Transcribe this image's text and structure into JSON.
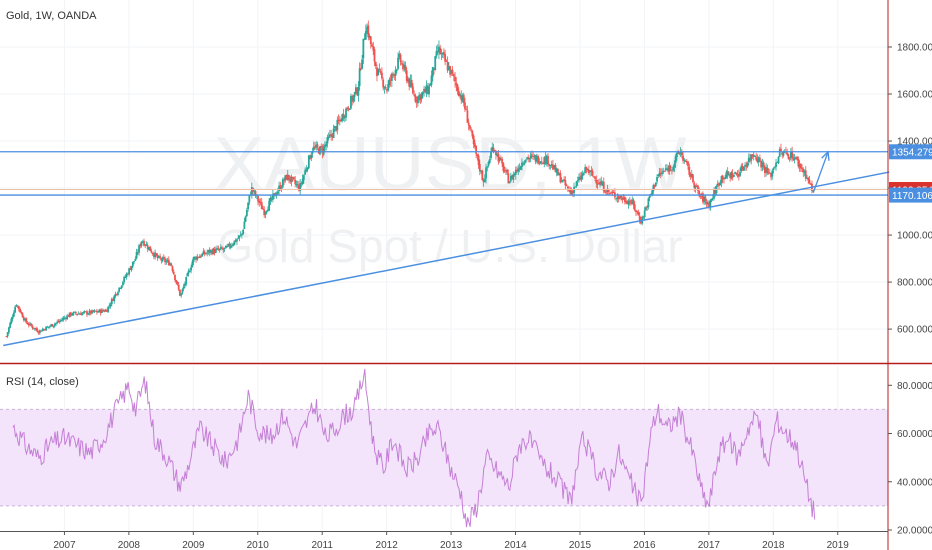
{
  "chart_title": "Gold, 1W, OANDA",
  "watermark_symbol": "XAUUSD, 1W",
  "watermark_name": "Gold Spot / U.S. Dollar",
  "rsi_label": "RSI (14, close)",
  "price_badges": [
    {
      "value": 1354.279,
      "label": "1354.279",
      "color": "#4a8fe0"
    },
    {
      "value": 1193.854,
      "label": "1193.854",
      "color": "#d9322e"
    },
    {
      "value": 1170.106,
      "label": "1170.106",
      "color": "#4a8fe0"
    }
  ],
  "colors": {
    "up": "#26a69a",
    "down": "#ef5350",
    "lines": "#4a8fe0",
    "rsi": "#c57fd6",
    "rsi_band": "#f3e3fb",
    "separator": "#b71c1c"
  },
  "chart_data": [
    {
      "type": "candlestick",
      "title": "Gold, 1W, OANDA",
      "ylabel": "",
      "xlabel": "",
      "ylim": [
        460,
        2000
      ],
      "y_ticks": [
        "600.000",
        "800.000",
        "1000.000",
        "1200.000",
        "1400.000",
        "1600.000",
        "1800.000"
      ],
      "y_tick_values": [
        600,
        800,
        1000,
        1200,
        1400,
        1600,
        1800
      ],
      "x_ticks": [
        "2007",
        "2008",
        "2009",
        "2010",
        "2011",
        "2012",
        "2013",
        "2014",
        "2015",
        "2016",
        "2017",
        "2018",
        "2019"
      ],
      "x_tick_values": [
        2007,
        2008,
        2009,
        2010,
        2011,
        2012,
        2013,
        2014,
        2015,
        2016,
        2017,
        2018,
        2019
      ],
      "close_series": [
        [
          2006.1,
          570
        ],
        [
          2006.25,
          710
        ],
        [
          2006.4,
          630
        ],
        [
          2006.6,
          590
        ],
        [
          2006.9,
          630
        ],
        [
          2007.1,
          665
        ],
        [
          2007.4,
          670
        ],
        [
          2007.65,
          680
        ],
        [
          2007.9,
          800
        ],
        [
          2008.1,
          900
        ],
        [
          2008.2,
          980
        ],
        [
          2008.45,
          900
        ],
        [
          2008.65,
          880
        ],
        [
          2008.8,
          740
        ],
        [
          2009.0,
          900
        ],
        [
          2009.25,
          930
        ],
        [
          2009.5,
          940
        ],
        [
          2009.75,
          1000
        ],
        [
          2009.9,
          1200
        ],
        [
          2010.1,
          1100
        ],
        [
          2010.45,
          1250
        ],
        [
          2010.65,
          1200
        ],
        [
          2010.85,
          1370
        ],
        [
          2011.0,
          1360
        ],
        [
          2011.3,
          1500
        ],
        [
          2011.55,
          1620
        ],
        [
          2011.68,
          1900
        ],
        [
          2011.85,
          1700
        ],
        [
          2012.0,
          1620
        ],
        [
          2012.2,
          1750
        ],
        [
          2012.45,
          1580
        ],
        [
          2012.65,
          1620
        ],
        [
          2012.8,
          1790
        ],
        [
          2013.0,
          1690
        ],
        [
          2013.2,
          1560
        ],
        [
          2013.35,
          1380
        ],
        [
          2013.5,
          1230
        ],
        [
          2013.65,
          1380
        ],
        [
          2013.9,
          1230
        ],
        [
          2014.15,
          1330
        ],
        [
          2014.5,
          1320
        ],
        [
          2014.85,
          1180
        ],
        [
          2015.1,
          1280
        ],
        [
          2015.45,
          1180
        ],
        [
          2015.8,
          1140
        ],
        [
          2015.95,
          1060
        ],
        [
          2016.2,
          1250
        ],
        [
          2016.45,
          1300
        ],
        [
          2016.55,
          1360
        ],
        [
          2016.85,
          1170
        ],
        [
          2017.0,
          1130
        ],
        [
          2017.2,
          1250
        ],
        [
          2017.45,
          1260
        ],
        [
          2017.7,
          1350
        ],
        [
          2017.95,
          1250
        ],
        [
          2018.1,
          1350
        ],
        [
          2018.3,
          1340
        ],
        [
          2018.5,
          1260
        ],
        [
          2018.62,
          1180
        ]
      ],
      "horizontal_levels": [
        1354.279,
        1193.854,
        1170.106
      ],
      "trendline": [
        [
          2006.05,
          530
        ],
        [
          2019.8,
          1268
        ]
      ],
      "projection": [
        [
          2018.62,
          1180
        ],
        [
          2018.85,
          1354
        ]
      ]
    },
    {
      "type": "line",
      "title": "RSI (14, close)",
      "ylim": [
        20,
        88
      ],
      "y_ticks": [
        "20.0000",
        "40.0000",
        "60.0000",
        "80.0000"
      ],
      "y_tick_values": [
        20,
        40,
        60,
        80
      ],
      "band": [
        30,
        70
      ],
      "series": [
        {
          "values": [
            [
              2006.2,
              63
            ],
            [
              2006.4,
              55
            ],
            [
              2006.6,
              50
            ],
            [
              2006.8,
              56
            ],
            [
              2007.0,
              58
            ],
            [
              2007.2,
              55
            ],
            [
              2007.4,
              52
            ],
            [
              2007.6,
              58
            ],
            [
              2007.8,
              70
            ],
            [
              2008.0,
              80
            ],
            [
              2008.1,
              70
            ],
            [
              2008.25,
              82
            ],
            [
              2008.4,
              58
            ],
            [
              2008.6,
              50
            ],
            [
              2008.8,
              38
            ],
            [
              2008.9,
              45
            ],
            [
              2009.1,
              62
            ],
            [
              2009.3,
              55
            ],
            [
              2009.5,
              48
            ],
            [
              2009.7,
              58
            ],
            [
              2009.85,
              76
            ],
            [
              2010.0,
              62
            ],
            [
              2010.2,
              58
            ],
            [
              2010.4,
              68
            ],
            [
              2010.6,
              55
            ],
            [
              2010.75,
              64
            ],
            [
              2010.9,
              72
            ],
            [
              2011.05,
              58
            ],
            [
              2011.2,
              62
            ],
            [
              2011.35,
              68
            ],
            [
              2011.5,
              70
            ],
            [
              2011.65,
              85
            ],
            [
              2011.8,
              55
            ],
            [
              2011.95,
              45
            ],
            [
              2012.1,
              58
            ],
            [
              2012.3,
              45
            ],
            [
              2012.5,
              50
            ],
            [
              2012.65,
              60
            ],
            [
              2012.8,
              62
            ],
            [
              2013.0,
              45
            ],
            [
              2013.15,
              36
            ],
            [
              2013.25,
              22
            ],
            [
              2013.4,
              30
            ],
            [
              2013.55,
              50
            ],
            [
              2013.7,
              45
            ],
            [
              2013.9,
              38
            ],
            [
              2014.05,
              55
            ],
            [
              2014.2,
              58
            ],
            [
              2014.4,
              48
            ],
            [
              2014.6,
              42
            ],
            [
              2014.85,
              32
            ],
            [
              2015.05,
              58
            ],
            [
              2015.25,
              45
            ],
            [
              2015.45,
              40
            ],
            [
              2015.6,
              52
            ],
            [
              2015.75,
              42
            ],
            [
              2015.95,
              30
            ],
            [
              2016.1,
              60
            ],
            [
              2016.2,
              70
            ],
            [
              2016.35,
              62
            ],
            [
              2016.55,
              68
            ],
            [
              2016.75,
              52
            ],
            [
              2016.9,
              35
            ],
            [
              2017.0,
              30
            ],
            [
              2017.15,
              52
            ],
            [
              2017.3,
              58
            ],
            [
              2017.45,
              50
            ],
            [
              2017.6,
              62
            ],
            [
              2017.75,
              68
            ],
            [
              2017.9,
              45
            ],
            [
              2018.05,
              66
            ],
            [
              2018.2,
              60
            ],
            [
              2018.35,
              56
            ],
            [
              2018.5,
              40
            ],
            [
              2018.6,
              30
            ],
            [
              2018.66,
              26
            ]
          ]
        }
      ]
    }
  ]
}
